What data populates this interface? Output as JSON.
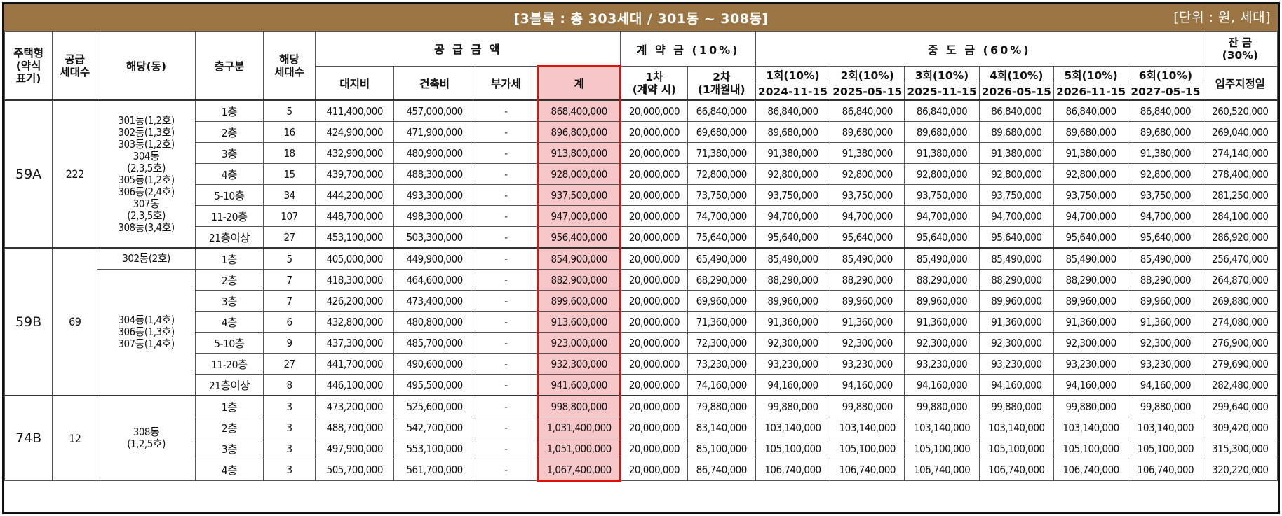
{
  "title": "[3블록 : 총 303세대 / 301동 ~ 308동]",
  "unit": "[단위 : 원, 세대]",
  "headers": {
    "type": "주택형\n(약식\n표기)",
    "supply_count": "공급\n세대수",
    "dong": "해당(동)",
    "floor": "층구분",
    "units": "해당\n세대수",
    "supply_amount": "공 급 금 액",
    "land": "대지비",
    "building": "건축비",
    "vat": "부가세",
    "total": "계",
    "deposit": "계 약 금 (10%)",
    "dep1": "1차\n(계약 시)",
    "dep2": "2차\n(1개월내)",
    "interim": "중 도 금 (60%)",
    "balance": "잔 금\n(30%)",
    "balance_sub": "입주지정일",
    "interim_cols": [
      {
        "label": "1회(10%)",
        "date": "2024-11-15"
      },
      {
        "label": "2회(10%)",
        "date": "2025-05-15"
      },
      {
        "label": "3회(10%)",
        "date": "2025-11-15"
      },
      {
        "label": "4회(10%)",
        "date": "2026-05-15"
      },
      {
        "label": "5회(10%)",
        "date": "2026-11-15"
      },
      {
        "label": "6회(10%)",
        "date": "2027-05-15"
      }
    ]
  },
  "groups": [
    {
      "type": "59A",
      "count": "222",
      "dong_blocks": [
        {
          "text": "301동(1,2호)\n302동(1,3호)\n303동(1,2호)\n304동\n(2,3,5호)\n305동(1,2호)\n306동(2,4호)\n307동\n(2,3,5호)\n308동(3,4호)",
          "span": 7
        }
      ],
      "rows": [
        {
          "floor": "1층",
          "units": "5",
          "land": "411,400,000",
          "building": "457,000,000",
          "vat": "-",
          "total": "868,400,000",
          "dep1": "20,000,000",
          "dep2": "66,840,000",
          "interim": "86,840,000",
          "balance": "260,520,000"
        },
        {
          "floor": "2층",
          "units": "16",
          "land": "424,900,000",
          "building": "471,900,000",
          "vat": "-",
          "total": "896,800,000",
          "dep1": "20,000,000",
          "dep2": "69,680,000",
          "interim": "89,680,000",
          "balance": "269,040,000"
        },
        {
          "floor": "3층",
          "units": "18",
          "land": "432,900,000",
          "building": "480,900,000",
          "vat": "-",
          "total": "913,800,000",
          "dep1": "20,000,000",
          "dep2": "71,380,000",
          "interim": "91,380,000",
          "balance": "274,140,000"
        },
        {
          "floor": "4층",
          "units": "15",
          "land": "439,700,000",
          "building": "488,300,000",
          "vat": "-",
          "total": "928,000,000",
          "dep1": "20,000,000",
          "dep2": "72,800,000",
          "interim": "92,800,000",
          "balance": "278,400,000"
        },
        {
          "floor": "5-10층",
          "units": "34",
          "land": "444,200,000",
          "building": "493,300,000",
          "vat": "-",
          "total": "937,500,000",
          "dep1": "20,000,000",
          "dep2": "73,750,000",
          "interim": "93,750,000",
          "balance": "281,250,000"
        },
        {
          "floor": "11-20층",
          "units": "107",
          "land": "448,700,000",
          "building": "498,300,000",
          "vat": "-",
          "total": "947,000,000",
          "dep1": "20,000,000",
          "dep2": "74,700,000",
          "interim": "94,700,000",
          "balance": "284,100,000"
        },
        {
          "floor": "21층이상",
          "units": "27",
          "land": "453,100,000",
          "building": "503,300,000",
          "vat": "-",
          "total": "956,400,000",
          "dep1": "20,000,000",
          "dep2": "75,640,000",
          "interim": "95,640,000",
          "balance": "286,920,000"
        }
      ]
    },
    {
      "type": "59B",
      "count": "69",
      "dong_blocks": [
        {
          "text": "302동(2호)",
          "span": 1
        },
        {
          "text": "304동(1,4호)\n306동(1,3호)\n307동(1,4호)",
          "span": 6
        }
      ],
      "rows": [
        {
          "floor": "1층",
          "units": "5",
          "land": "405,000,000",
          "building": "449,900,000",
          "vat": "-",
          "total": "854,900,000",
          "dep1": "20,000,000",
          "dep2": "65,490,000",
          "interim": "85,490,000",
          "balance": "256,470,000"
        },
        {
          "floor": "2층",
          "units": "7",
          "land": "418,300,000",
          "building": "464,600,000",
          "vat": "-",
          "total": "882,900,000",
          "dep1": "20,000,000",
          "dep2": "68,290,000",
          "interim": "88,290,000",
          "balance": "264,870,000"
        },
        {
          "floor": "3층",
          "units": "7",
          "land": "426,200,000",
          "building": "473,400,000",
          "vat": "-",
          "total": "899,600,000",
          "dep1": "20,000,000",
          "dep2": "69,960,000",
          "interim": "89,960,000",
          "balance": "269,880,000"
        },
        {
          "floor": "4층",
          "units": "6",
          "land": "432,800,000",
          "building": "480,800,000",
          "vat": "-",
          "total": "913,600,000",
          "dep1": "20,000,000",
          "dep2": "71,360,000",
          "interim": "91,360,000",
          "balance": "274,080,000"
        },
        {
          "floor": "5-10층",
          "units": "9",
          "land": "437,300,000",
          "building": "485,700,000",
          "vat": "-",
          "total": "923,000,000",
          "dep1": "20,000,000",
          "dep2": "72,300,000",
          "interim": "92,300,000",
          "balance": "276,900,000"
        },
        {
          "floor": "11-20층",
          "units": "27",
          "land": "441,700,000",
          "building": "490,600,000",
          "vat": "-",
          "total": "932,300,000",
          "dep1": "20,000,000",
          "dep2": "73,230,000",
          "interim": "93,230,000",
          "balance": "279,690,000"
        },
        {
          "floor": "21층이상",
          "units": "8",
          "land": "446,100,000",
          "building": "495,500,000",
          "vat": "-",
          "total": "941,600,000",
          "dep1": "20,000,000",
          "dep2": "74,160,000",
          "interim": "94,160,000",
          "balance": "282,480,000"
        }
      ]
    },
    {
      "type": "74B",
      "count": "12",
      "dong_blocks": [
        {
          "text": "308동\n(1,2,5호)",
          "span": 4
        }
      ],
      "rows": [
        {
          "floor": "1층",
          "units": "3",
          "land": "473,200,000",
          "building": "525,600,000",
          "vat": "-",
          "total": "998,800,000",
          "dep1": "20,000,000",
          "dep2": "79,880,000",
          "interim": "99,880,000",
          "balance": "299,640,000"
        },
        {
          "floor": "2층",
          "units": "3",
          "land": "488,700,000",
          "building": "542,700,000",
          "vat": "-",
          "total": "1,031,400,000",
          "dep1": "20,000,000",
          "dep2": "83,140,000",
          "interim": "103,140,000",
          "balance": "309,420,000"
        },
        {
          "floor": "3층",
          "units": "3",
          "land": "497,900,000",
          "building": "553,100,000",
          "vat": "-",
          "total": "1,051,000,000",
          "dep1": "20,000,000",
          "dep2": "85,100,000",
          "interim": "105,100,000",
          "balance": "315,300,000"
        },
        {
          "floor": "4층",
          "units": "3",
          "land": "505,700,000",
          "building": "561,700,000",
          "vat": "-",
          "total": "1,067,400,000",
          "dep1": "20,000,000",
          "dep2": "86,740,000",
          "interim": "106,740,000",
          "balance": "320,220,000"
        }
      ]
    }
  ],
  "colors": {
    "title_bar": "#9b7443",
    "highlight_fill": "#f6c6c9",
    "highlight_border": "#e01010"
  }
}
